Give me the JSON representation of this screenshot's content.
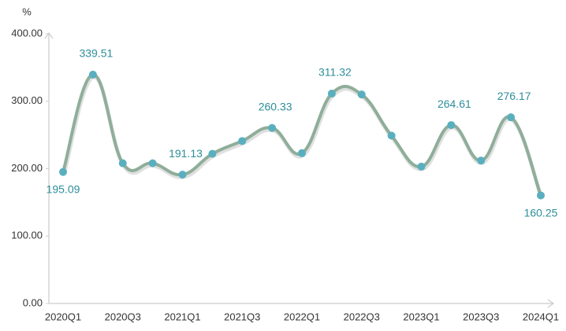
{
  "chart_data": {
    "type": "line",
    "y_label": "%",
    "categories": [
      "2020Q1",
      null,
      "2020Q3",
      null,
      "2021Q1",
      null,
      "2021Q3",
      null,
      "2022Q1",
      null,
      "2022Q3",
      null,
      "2023Q1",
      null,
      "2023Q3",
      null,
      "2024Q1"
    ],
    "series": [
      {
        "color": "#8fae9a",
        "marker_color": "#5aafbf",
        "values": [
          195.09,
          339.51,
          208,
          208,
          191.13,
          222,
          241,
          260.33,
          223,
          311.32,
          310,
          249,
          203,
          264.61,
          212,
          276.17,
          160.25
        ],
        "value_labels": [
          "195.09",
          "339.51",
          null,
          null,
          "191.13",
          null,
          null,
          "260.33",
          null,
          "311.32",
          null,
          null,
          null,
          "264.61",
          null,
          "276.17",
          "160.25"
        ]
      }
    ],
    "ylim": [
      0,
      400
    ],
    "yticks": [
      {
        "value": 0,
        "label": "0.00"
      },
      {
        "value": 100,
        "label": "100.00"
      },
      {
        "value": 200,
        "label": "200.00"
      },
      {
        "value": 300,
        "label": "300.00"
      },
      {
        "value": 400,
        "label": "400.00"
      }
    ],
    "grid": false
  }
}
